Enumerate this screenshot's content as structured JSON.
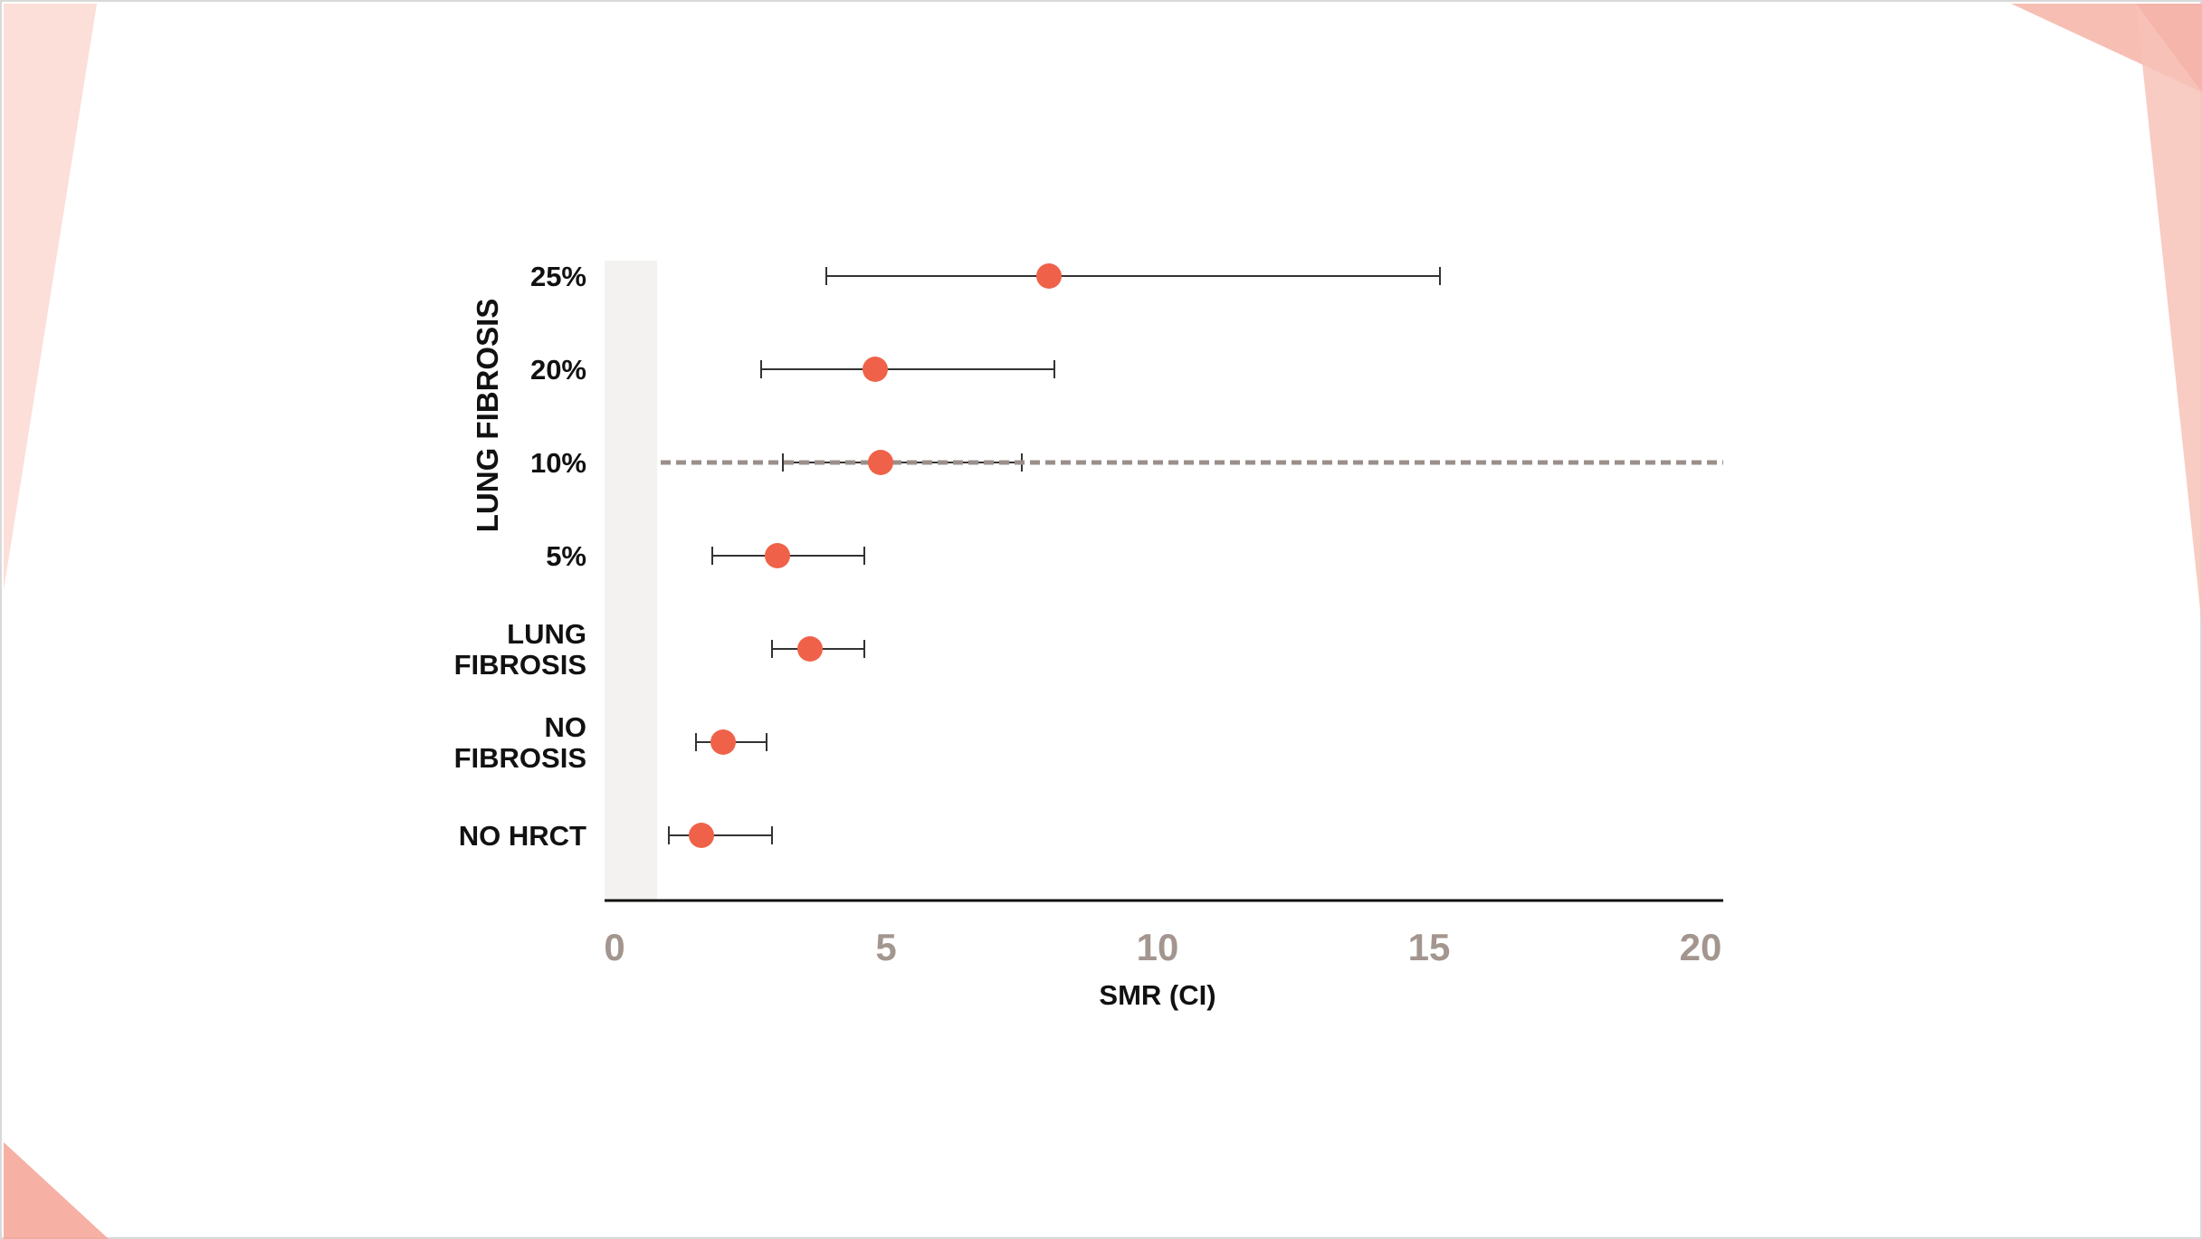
{
  "colors": {
    "marker": "#ef6249",
    "whisker": "#333333",
    "reference_line": "#9a8f8a",
    "shaded_band": "#f3f2f1",
    "tick_label": "#a3968f",
    "accent_light": "#f7c2b8",
    "accent_dark": "#e8604d"
  },
  "chart_data": {
    "type": "forest",
    "xlabel": "SMR (CI)",
    "group_label": "LUNG FIBROSIS",
    "xlim": [
      0,
      20
    ],
    "xticks": [
      0,
      5,
      10,
      15,
      20
    ],
    "reference_line_x": 10,
    "reference_line_style": "dashed",
    "categories": [
      {
        "label": [
          "25%"
        ],
        "smr": 8.0,
        "ci_low": 3.9,
        "ci_high": 15.2
      },
      {
        "label": [
          "20%"
        ],
        "smr": 4.8,
        "ci_low": 2.7,
        "ci_high": 8.1
      },
      {
        "label": [
          "10%"
        ],
        "smr": 4.9,
        "ci_low": 3.1,
        "ci_high": 7.5
      },
      {
        "label": [
          "5%"
        ],
        "smr": 3.0,
        "ci_low": 1.8,
        "ci_high": 4.6
      },
      {
        "label": [
          "LUNG",
          "FIBROSIS"
        ],
        "smr": 3.6,
        "ci_low": 2.9,
        "ci_high": 4.6
      },
      {
        "label": [
          "NO",
          "FIBROSIS"
        ],
        "smr": 2.0,
        "ci_low": 1.5,
        "ci_high": 2.8
      },
      {
        "label": [
          "NO HRCT"
        ],
        "smr": 1.6,
        "ci_low": 1.0,
        "ci_high": 2.9
      }
    ]
  }
}
